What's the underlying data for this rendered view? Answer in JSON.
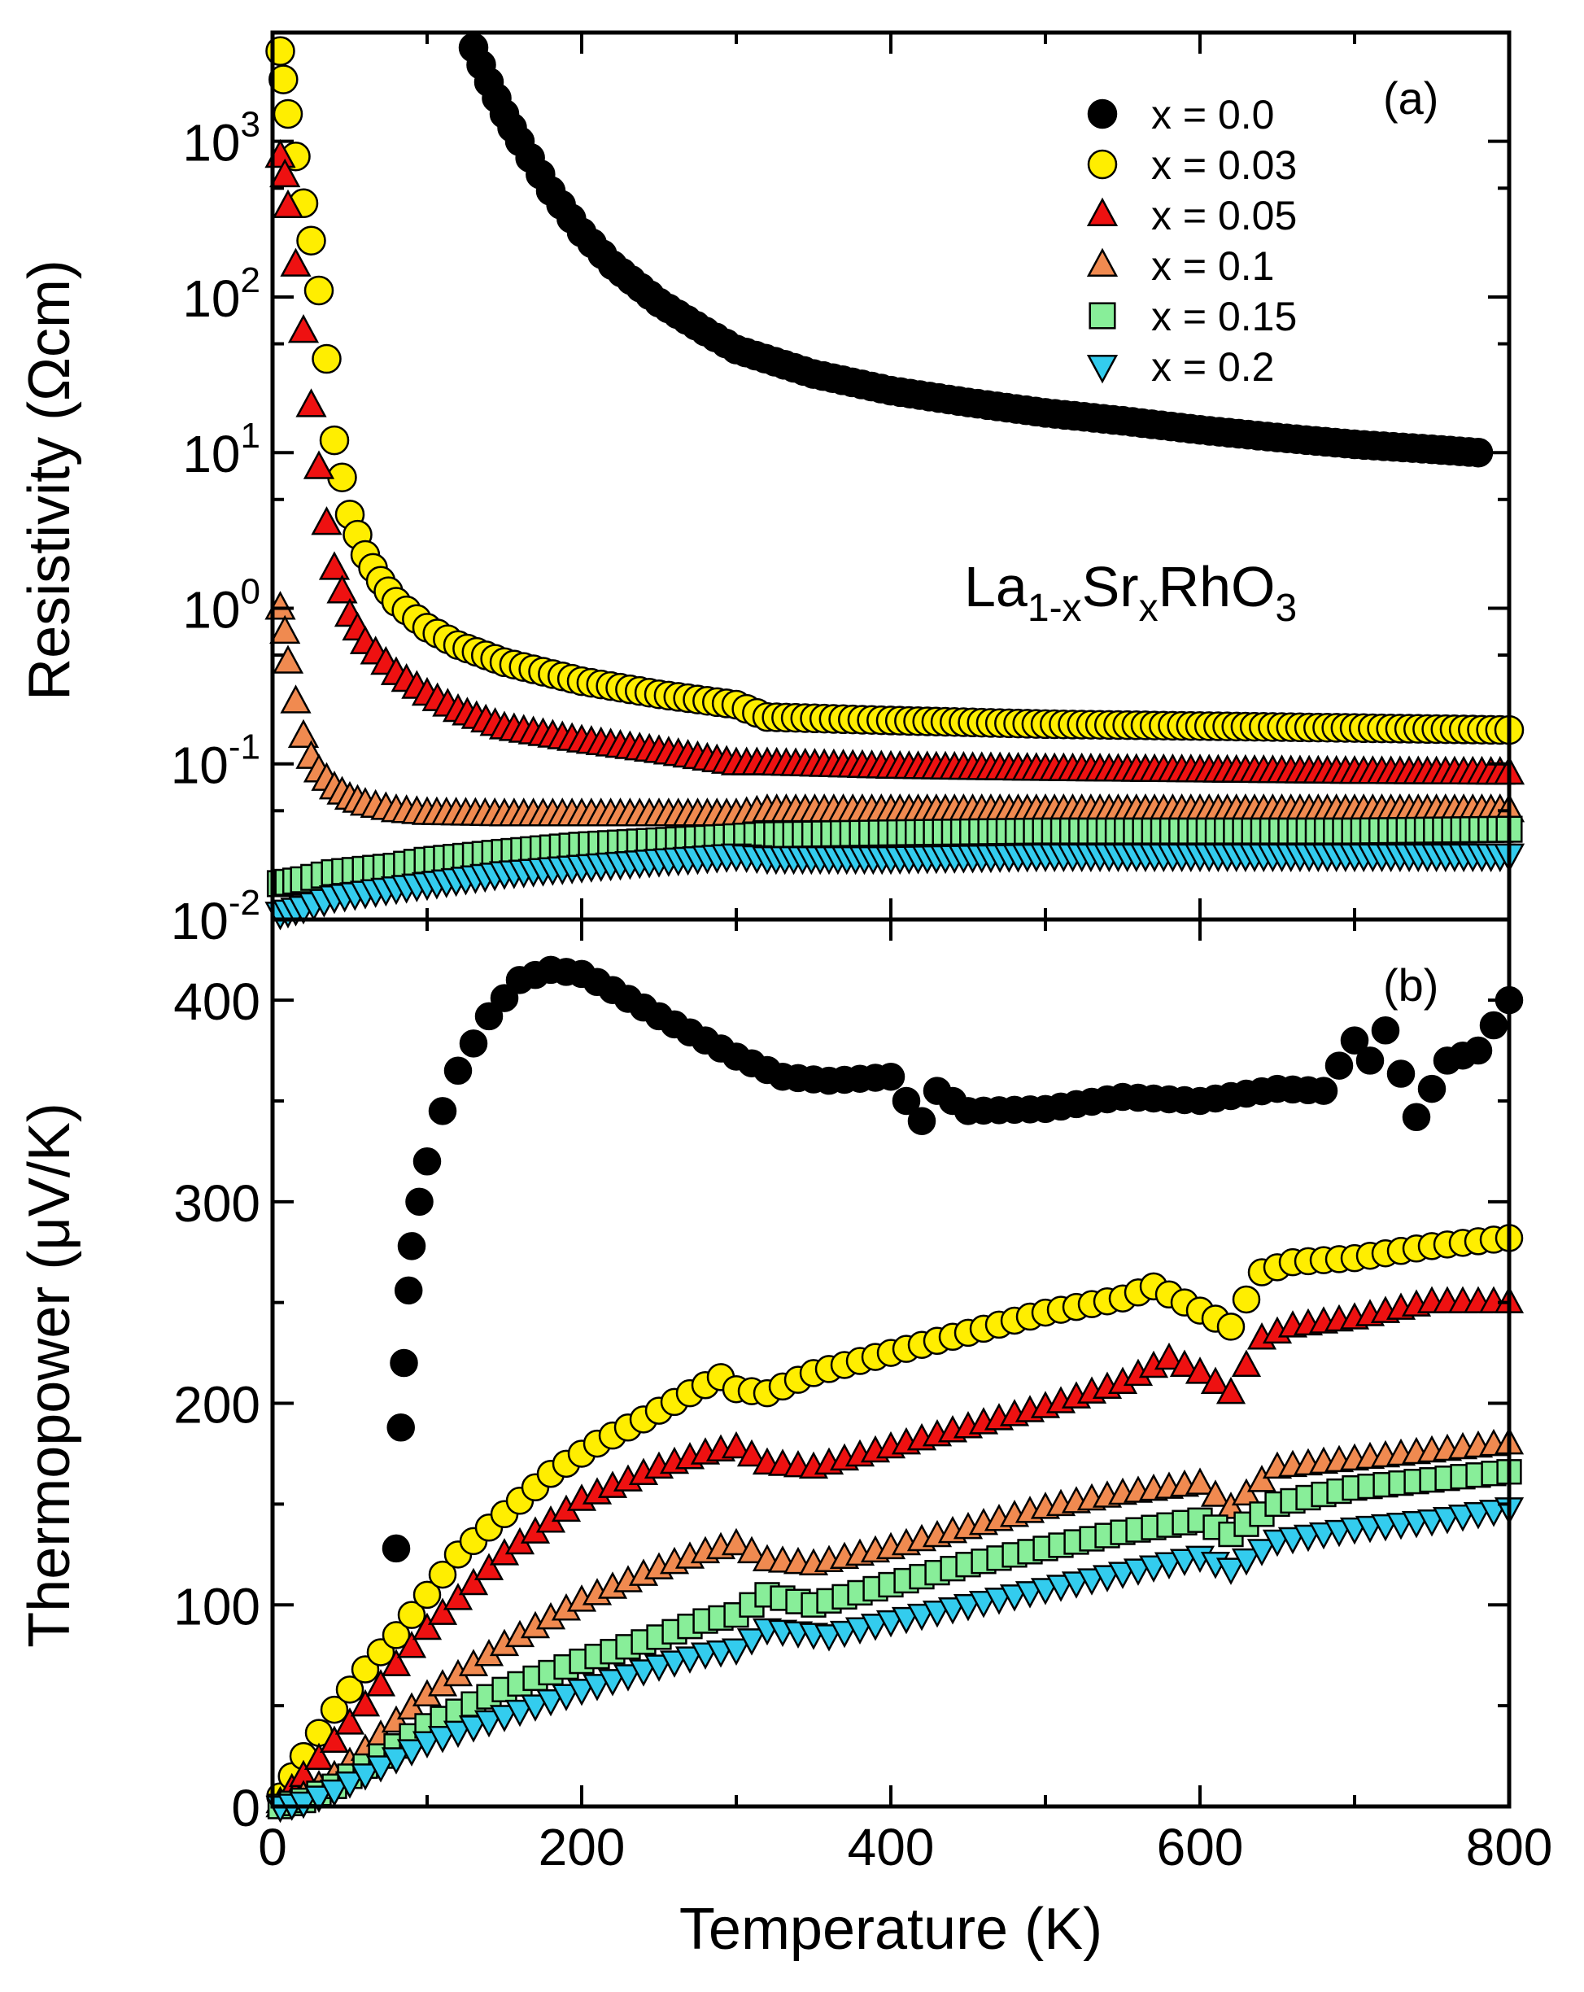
{
  "chart_data": [
    {
      "panel": "a",
      "type": "scatter",
      "panel_label": "(a)",
      "title": "",
      "compound": {
        "base": "La",
        "sub1": "1-x",
        "mid": "Sr",
        "sub2": "x",
        "end": "RhO",
        "sub3": "3"
      },
      "xlabel": "Temperature (K)",
      "ylabel": "Resistivity (Ωcm)",
      "yscale": "log",
      "xlim": [
        0,
        800
      ],
      "ylim": [
        0.01,
        5000
      ],
      "yticks": [
        {
          "base": "10",
          "exp": "-2",
          "value": 0.01
        },
        {
          "base": "10",
          "exp": "-1",
          "value": 0.1
        },
        {
          "base": "10",
          "exp": "0",
          "value": 1
        },
        {
          "base": "10",
          "exp": "1",
          "value": 10
        },
        {
          "base": "10",
          "exp": "2",
          "value": 100
        },
        {
          "base": "10",
          "exp": "3",
          "value": 1000
        }
      ],
      "legend_position": "top-right",
      "series": [
        {
          "name": "x = 0.0",
          "marker": "circle",
          "color": "#000000",
          "x": [
            130,
            140,
            150,
            160,
            180,
            200,
            220,
            250,
            280,
            300,
            350,
            400,
            450,
            500,
            550,
            600,
            650,
            700,
            750,
            780
          ],
          "y": [
            4000,
            2400,
            1500,
            1000,
            480,
            260,
            160,
            92,
            60,
            46,
            32,
            25,
            21,
            18,
            16,
            14,
            12.5,
            11.3,
            10.5,
            10
          ]
        },
        {
          "name": "x = 0.03",
          "marker": "circle",
          "color": "#ffee00",
          "x": [
            5,
            7,
            10,
            15,
            20,
            25,
            30,
            35,
            40,
            50,
            60,
            70,
            80,
            100,
            120,
            150,
            200,
            250,
            300,
            320,
            400,
            500,
            600,
            700,
            800
          ],
          "y": [
            3800,
            2500,
            1500,
            800,
            400,
            230,
            110,
            40,
            12,
            4,
            2.2,
            1.5,
            1.1,
            0.75,
            0.58,
            0.45,
            0.34,
            0.28,
            0.24,
            0.2,
            0.19,
            0.18,
            0.175,
            0.17,
            0.165
          ]
        },
        {
          "name": "x = 0.05",
          "marker": "triangle-up",
          "color": "#ee1111",
          "x": [
            5,
            8,
            10,
            15,
            20,
            25,
            30,
            35,
            40,
            50,
            60,
            80,
            100,
            120,
            150,
            200,
            250,
            300,
            320,
            400,
            500,
            600,
            700,
            800
          ],
          "y": [
            800,
            600,
            380,
            160,
            60,
            20,
            8,
            3.5,
            1.8,
            0.9,
            0.6,
            0.38,
            0.28,
            0.22,
            0.17,
            0.14,
            0.12,
            0.1,
            0.1,
            0.095,
            0.092,
            0.09,
            0.088,
            0.087
          ]
        },
        {
          "name": "x = 0.1",
          "marker": "triangle-up",
          "color": "#f08a50",
          "x": [
            5,
            8,
            10,
            15,
            20,
            25,
            30,
            40,
            50,
            60,
            80,
            100,
            150,
            200,
            250,
            300,
            320,
            400,
            500,
            600,
            700,
            800
          ],
          "y": [
            1.0,
            0.7,
            0.45,
            0.25,
            0.15,
            0.11,
            0.09,
            0.07,
            0.06,
            0.055,
            0.05,
            0.048,
            0.047,
            0.047,
            0.047,
            0.047,
            0.05,
            0.05,
            0.05,
            0.05,
            0.05,
            0.05
          ]
        },
        {
          "name": "x = 0.15",
          "marker": "square",
          "color": "#88ee99",
          "x": [
            5,
            20,
            40,
            60,
            80,
            100,
            150,
            200,
            250,
            300,
            320,
            400,
            500,
            600,
            700,
            800
          ],
          "y": [
            0.017,
            0.018,
            0.02,
            0.021,
            0.022,
            0.024,
            0.027,
            0.03,
            0.032,
            0.034,
            0.035,
            0.036,
            0.037,
            0.037,
            0.037,
            0.038
          ]
        },
        {
          "name": "x = 0.2",
          "marker": "triangle-down",
          "color": "#33ccee",
          "x": [
            5,
            20,
            40,
            60,
            80,
            100,
            150,
            200,
            250,
            300,
            320,
            360,
            400,
            500,
            600,
            700,
            800
          ],
          "y": [
            0.011,
            0.012,
            0.014,
            0.015,
            0.016,
            0.017,
            0.02,
            0.022,
            0.024,
            0.026,
            0.025,
            0.025,
            0.025,
            0.026,
            0.026,
            0.026,
            0.026
          ]
        }
      ]
    },
    {
      "panel": "b",
      "type": "scatter",
      "panel_label": "(b)",
      "title": "",
      "xlabel": "Temperature (K)",
      "ylabel": "Thermopower (μV/K)",
      "xlim": [
        0,
        800
      ],
      "ylim": [
        0,
        440
      ],
      "xticks": [
        "0",
        "200",
        "400",
        "600",
        "800"
      ],
      "yticks": [
        "0",
        "100",
        "200",
        "300",
        "400"
      ],
      "series": [
        {
          "name": "x = 0.0",
          "marker": "circle",
          "color": "#000000",
          "x": [
            80,
            83,
            85,
            88,
            90,
            95,
            100,
            110,
            120,
            140,
            160,
            180,
            200,
            220,
            250,
            280,
            300,
            330,
            360,
            400,
            410,
            420,
            430,
            450,
            500,
            550,
            600,
            650,
            680,
            700,
            710,
            720,
            740,
            760,
            780,
            800
          ],
          "y": [
            128,
            188,
            220,
            256,
            278,
            300,
            320,
            345,
            365,
            392,
            410,
            415,
            413,
            405,
            392,
            380,
            372,
            362,
            360,
            362,
            350,
            340,
            355,
            345,
            346,
            352,
            350,
            356,
            355,
            380,
            370,
            385,
            342,
            370,
            375,
            400
          ]
        },
        {
          "name": "x = 0.03",
          "marker": "circle",
          "color": "#ffee00",
          "x": [
            5,
            20,
            40,
            60,
            80,
            100,
            120,
            150,
            180,
            210,
            240,
            270,
            290,
            300,
            320,
            350,
            400,
            450,
            500,
            550,
            570,
            590,
            620,
            640,
            660,
            700,
            750,
            800
          ],
          "y": [
            5,
            25,
            48,
            68,
            85,
            105,
            125,
            145,
            165,
            180,
            192,
            205,
            213,
            207,
            205,
            215,
            225,
            235,
            245,
            252,
            258,
            250,
            238,
            265,
            270,
            272,
            278,
            282
          ]
        },
        {
          "name": "x = 0.05",
          "marker": "triangle-up",
          "color": "#ee1111",
          "x": [
            5,
            20,
            40,
            60,
            80,
            100,
            150,
            200,
            250,
            280,
            300,
            320,
            350,
            400,
            450,
            500,
            550,
            580,
            600,
            620,
            640,
            660,
            700,
            750,
            800
          ],
          "y": [
            2,
            15,
            32,
            50,
            70,
            88,
            125,
            152,
            168,
            175,
            178,
            170,
            168,
            178,
            188,
            198,
            210,
            222,
            215,
            205,
            232,
            238,
            242,
            250,
            250
          ]
        },
        {
          "name": "x = 0.1",
          "marker": "triangle-up",
          "color": "#f08a50",
          "x": [
            5,
            20,
            40,
            60,
            80,
            100,
            150,
            200,
            250,
            280,
            300,
            320,
            350,
            400,
            450,
            500,
            550,
            600,
            620,
            650,
            700,
            750,
            800
          ],
          "y": [
            0,
            5,
            15,
            28,
            42,
            55,
            80,
            102,
            118,
            126,
            130,
            122,
            120,
            128,
            138,
            148,
            155,
            160,
            148,
            168,
            172,
            176,
            180
          ]
        },
        {
          "name": "x = 0.15",
          "marker": "square",
          "color": "#88ee99",
          "x": [
            5,
            20,
            40,
            60,
            80,
            100,
            150,
            200,
            250,
            280,
            300,
            320,
            350,
            400,
            450,
            500,
            550,
            600,
            620,
            650,
            700,
            750,
            800
          ],
          "y": [
            0,
            3,
            10,
            20,
            30,
            40,
            58,
            72,
            84,
            92,
            95,
            105,
            100,
            110,
            120,
            128,
            136,
            142,
            135,
            150,
            158,
            162,
            166
          ]
        },
        {
          "name": "x = 0.2",
          "marker": "triangle-down",
          "color": "#33ccee",
          "x": [
            5,
            20,
            40,
            60,
            80,
            100,
            150,
            200,
            250,
            280,
            300,
            320,
            360,
            400,
            450,
            500,
            550,
            600,
            620,
            650,
            700,
            750,
            800
          ],
          "y": [
            0,
            2,
            8,
            16,
            24,
            32,
            45,
            58,
            70,
            76,
            78,
            88,
            85,
            92,
            100,
            108,
            116,
            124,
            118,
            132,
            138,
            142,
            148
          ]
        }
      ]
    }
  ]
}
